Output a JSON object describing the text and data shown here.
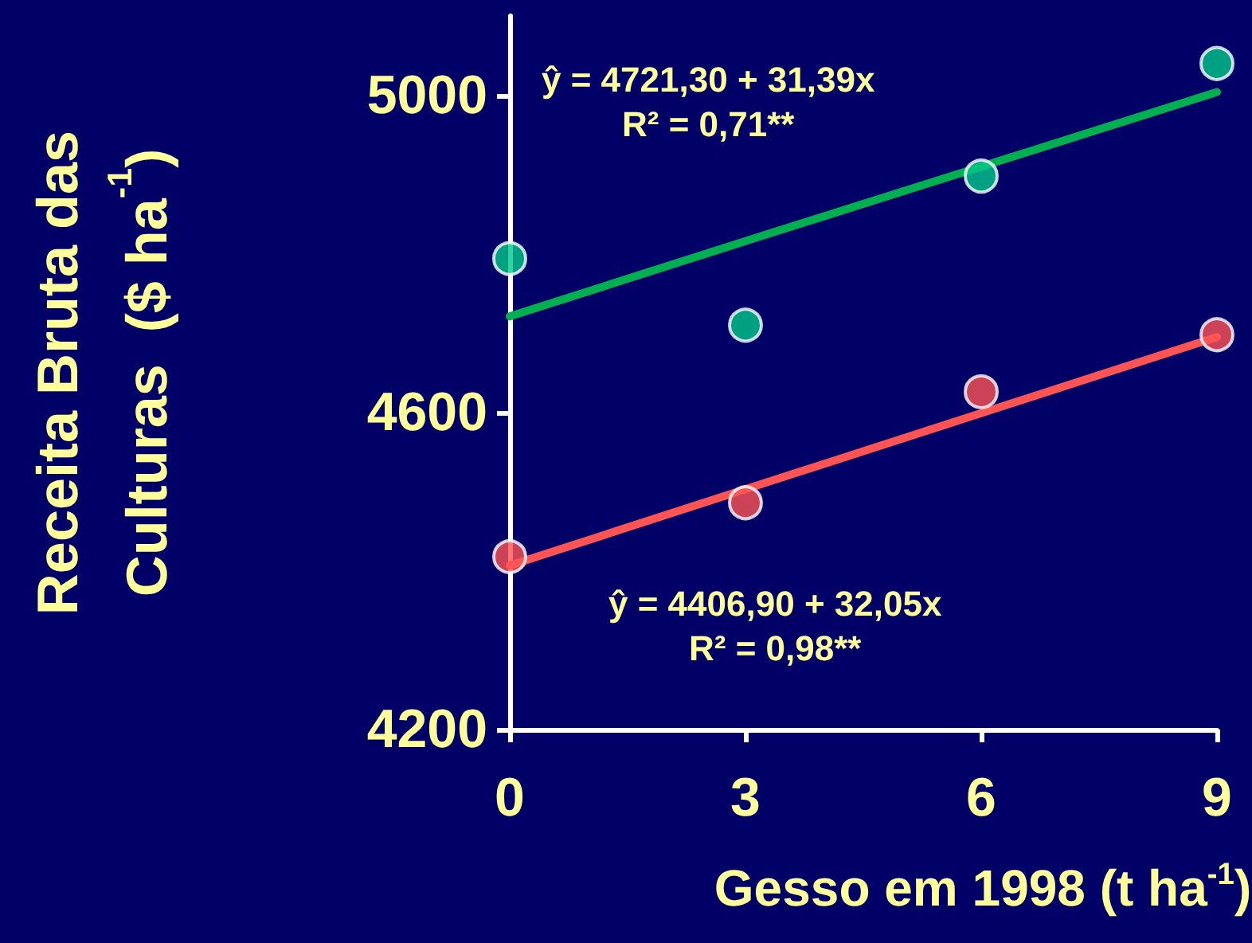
{
  "chart_data": {
    "type": "scatter",
    "xlabel": "Gesso em 1998 (t ha$^{-1}$)",
    "ylabel": "Receita Bruta das\nCulturas  ($ ha$^{-1}$)",
    "x": [
      0,
      3,
      6,
      9
    ],
    "xlim": [
      0,
      9
    ],
    "xticks": [
      0,
      3,
      6,
      9
    ],
    "ylim": [
      4200,
      5100
    ],
    "yticks": [
      4200,
      4600,
      5000
    ],
    "series": [
      {
        "color": "#00c98a",
        "values": [
          4794,
          4710,
          4898,
          5040
        ]
      },
      {
        "color": "#ff5454",
        "values": [
          4418,
          4486,
          4626,
          4698
        ]
      },
      {
        "type": "line",
        "marker": "none",
        "color": "#00b050",
        "values": [
          4721,
          4816,
          4910,
          5004
        ]
      },
      {
        "type": "line",
        "marker": "none",
        "color": "#ff5454",
        "values": [
          4407,
          4503,
          4599,
          4695
        ]
      }
    ],
    "annotations": [
      "ŷ = 4721,30 + 31,39x\nR² = 0,71**",
      "ŷ = 4406,90 + 32,05x\nR² = 0,98**"
    ],
    "marker": "circle",
    "line_style": "solid",
    "grid": false
  }
}
